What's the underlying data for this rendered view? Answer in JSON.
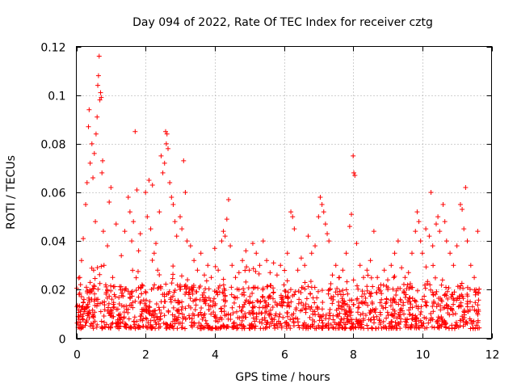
{
  "chart_data": {
    "type": "scatter",
    "title": "Day 094 of 2022, Rate Of TEC Index for receiver cztg",
    "xlabel": "GPS time / hours",
    "ylabel": "ROTI / TECUs",
    "xlim": [
      0,
      12
    ],
    "ylim": [
      0,
      0.12
    ],
    "x_ticks": [
      0,
      2,
      4,
      6,
      8,
      10,
      12
    ],
    "x_tick_labels": [
      "0",
      "2",
      "4",
      "6",
      "8",
      "10",
      "12"
    ],
    "y_ticks": [
      0,
      0.02,
      0.04,
      0.06,
      0.08,
      0.1,
      0.12
    ],
    "y_tick_labels": [
      "0",
      "0.02",
      "0.04",
      "0.06",
      "0.08",
      "0.1",
      "0.12"
    ],
    "grid": true,
    "marker": "+",
    "color": "#ff0000",
    "series": [
      {
        "name": "ROTI",
        "points": [
          [
            0.02,
            0.013
          ],
          [
            0.05,
            0.009
          ],
          [
            0.08,
            0.018
          ],
          [
            0.1,
            0.025
          ],
          [
            0.12,
            0.011
          ],
          [
            0.15,
            0.032
          ],
          [
            0.18,
            0.008
          ],
          [
            0.2,
            0.041
          ],
          [
            0.22,
            0.016
          ],
          [
            0.25,
            0.012
          ],
          [
            0.27,
            0.055
          ],
          [
            0.29,
            0.021
          ],
          [
            0.31,
            0.064
          ],
          [
            0.33,
            0.014
          ],
          [
            0.35,
            0.087
          ],
          [
            0.37,
            0.094
          ],
          [
            0.4,
            0.072
          ],
          [
            0.42,
            0.019
          ],
          [
            0.45,
            0.08
          ],
          [
            0.48,
            0.066
          ],
          [
            0.5,
            0.028
          ],
          [
            0.52,
            0.076
          ],
          [
            0.55,
            0.048
          ],
          [
            0.57,
            0.084
          ],
          [
            0.6,
            0.091
          ],
          [
            0.62,
            0.104
          ],
          [
            0.64,
            0.108
          ],
          [
            0.66,
            0.116
          ],
          [
            0.68,
            0.098
          ],
          [
            0.7,
            0.101
          ],
          [
            0.72,
            0.099
          ],
          [
            0.74,
            0.068
          ],
          [
            0.76,
            0.073
          ],
          [
            0.78,
            0.044
          ],
          [
            0.8,
            0.03
          ],
          [
            0.85,
            0.022
          ],
          [
            0.9,
            0.038
          ],
          [
            0.95,
            0.056
          ],
          [
            1.0,
            0.062
          ],
          [
            1.05,
            0.025
          ],
          [
            1.1,
            0.018
          ],
          [
            1.15,
            0.047
          ],
          [
            1.2,
            0.012
          ],
          [
            1.3,
            0.034
          ],
          [
            1.4,
            0.044
          ],
          [
            1.5,
            0.058
          ],
          [
            1.55,
            0.052
          ],
          [
            1.6,
            0.04
          ],
          [
            1.65,
            0.048
          ],
          [
            1.7,
            0.085
          ],
          [
            1.75,
            0.061
          ],
          [
            1.8,
            0.036
          ],
          [
            1.85,
            0.043
          ],
          [
            1.9,
            0.022
          ],
          [
            2.0,
            0.06
          ],
          [
            2.05,
            0.05
          ],
          [
            2.1,
            0.065
          ],
          [
            2.15,
            0.045
          ],
          [
            2.2,
            0.063
          ],
          [
            2.25,
            0.035
          ],
          [
            2.3,
            0.039
          ],
          [
            2.35,
            0.028
          ],
          [
            2.4,
            0.052
          ],
          [
            2.45,
            0.075
          ],
          [
            2.5,
            0.068
          ],
          [
            2.55,
            0.072
          ],
          [
            2.58,
            0.085
          ],
          [
            2.6,
            0.08
          ],
          [
            2.62,
            0.084
          ],
          [
            2.65,
            0.078
          ],
          [
            2.7,
            0.064
          ],
          [
            2.75,
            0.058
          ],
          [
            2.8,
            0.055
          ],
          [
            2.85,
            0.048
          ],
          [
            2.9,
            0.042
          ],
          [
            3.0,
            0.05
          ],
          [
            3.05,
            0.045
          ],
          [
            3.1,
            0.073
          ],
          [
            3.15,
            0.06
          ],
          [
            3.2,
            0.04
          ],
          [
            3.3,
            0.038
          ],
          [
            3.4,
            0.032
          ],
          [
            3.5,
            0.028
          ],
          [
            3.6,
            0.035
          ],
          [
            3.7,
            0.026
          ],
          [
            3.8,
            0.03
          ],
          [
            3.9,
            0.025
          ],
          [
            4.0,
            0.037
          ],
          [
            4.1,
            0.028
          ],
          [
            4.2,
            0.04
          ],
          [
            4.25,
            0.044
          ],
          [
            4.3,
            0.042
          ],
          [
            4.35,
            0.049
          ],
          [
            4.4,
            0.057
          ],
          [
            4.45,
            0.038
          ],
          [
            4.5,
            0.03
          ],
          [
            4.6,
            0.025
          ],
          [
            4.7,
            0.027
          ],
          [
            4.8,
            0.032
          ],
          [
            4.9,
            0.036
          ],
          [
            5.0,
            0.028
          ],
          [
            5.1,
            0.039
          ],
          [
            5.2,
            0.035
          ],
          [
            5.3,
            0.03
          ],
          [
            5.4,
            0.04
          ],
          [
            5.5,
            0.032
          ],
          [
            5.6,
            0.027
          ],
          [
            5.7,
            0.031
          ],
          [
            5.8,
            0.026
          ],
          [
            5.9,
            0.03
          ],
          [
            6.0,
            0.022
          ],
          [
            6.1,
            0.035
          ],
          [
            6.2,
            0.052
          ],
          [
            6.25,
            0.05
          ],
          [
            6.3,
            0.045
          ],
          [
            6.4,
            0.028
          ],
          [
            6.5,
            0.033
          ],
          [
            6.6,
            0.03
          ],
          [
            6.7,
            0.042
          ],
          [
            6.8,
            0.035
          ],
          [
            6.9,
            0.038
          ],
          [
            7.0,
            0.05
          ],
          [
            7.05,
            0.058
          ],
          [
            7.1,
            0.055
          ],
          [
            7.15,
            0.052
          ],
          [
            7.2,
            0.047
          ],
          [
            7.25,
            0.043
          ],
          [
            7.3,
            0.04
          ],
          [
            7.4,
            0.026
          ],
          [
            7.5,
            0.03
          ],
          [
            7.6,
            0.025
          ],
          [
            7.7,
            0.028
          ],
          [
            7.8,
            0.035
          ],
          [
            7.9,
            0.046
          ],
          [
            7.95,
            0.051
          ],
          [
            8.0,
            0.075
          ],
          [
            8.02,
            0.068
          ],
          [
            8.05,
            0.067
          ],
          [
            8.1,
            0.039
          ],
          [
            8.2,
            0.03
          ],
          [
            8.3,
            0.025
          ],
          [
            8.4,
            0.028
          ],
          [
            8.5,
            0.032
          ],
          [
            8.6,
            0.044
          ],
          [
            8.7,
            0.025
          ],
          [
            8.8,
            0.022
          ],
          [
            8.9,
            0.028
          ],
          [
            9.0,
            0.024
          ],
          [
            9.1,
            0.03
          ],
          [
            9.2,
            0.035
          ],
          [
            9.3,
            0.04
          ],
          [
            9.4,
            0.029
          ],
          [
            9.5,
            0.025
          ],
          [
            9.6,
            0.027
          ],
          [
            9.7,
            0.035
          ],
          [
            9.8,
            0.044
          ],
          [
            9.85,
            0.052
          ],
          [
            9.9,
            0.048
          ],
          [
            9.95,
            0.04
          ],
          [
            10.0,
            0.035
          ],
          [
            10.1,
            0.045
          ],
          [
            10.2,
            0.042
          ],
          [
            10.25,
            0.06
          ],
          [
            10.3,
            0.038
          ],
          [
            10.4,
            0.047
          ],
          [
            10.45,
            0.05
          ],
          [
            10.5,
            0.044
          ],
          [
            10.6,
            0.055
          ],
          [
            10.65,
            0.048
          ],
          [
            10.7,
            0.04
          ],
          [
            10.8,
            0.035
          ],
          [
            10.9,
            0.03
          ],
          [
            11.0,
            0.038
          ],
          [
            11.1,
            0.055
          ],
          [
            11.15,
            0.053
          ],
          [
            11.2,
            0.045
          ],
          [
            11.25,
            0.062
          ],
          [
            11.3,
            0.04
          ],
          [
            11.4,
            0.03
          ],
          [
            11.5,
            0.025
          ],
          [
            11.55,
            0.02
          ],
          [
            11.6,
            0.044
          ]
        ],
        "baseline_band": {
          "x_range": [
            0,
            11.65
          ],
          "y_min": 0.004,
          "y_max": 0.022,
          "approx_count": 1400
        }
      }
    ]
  }
}
